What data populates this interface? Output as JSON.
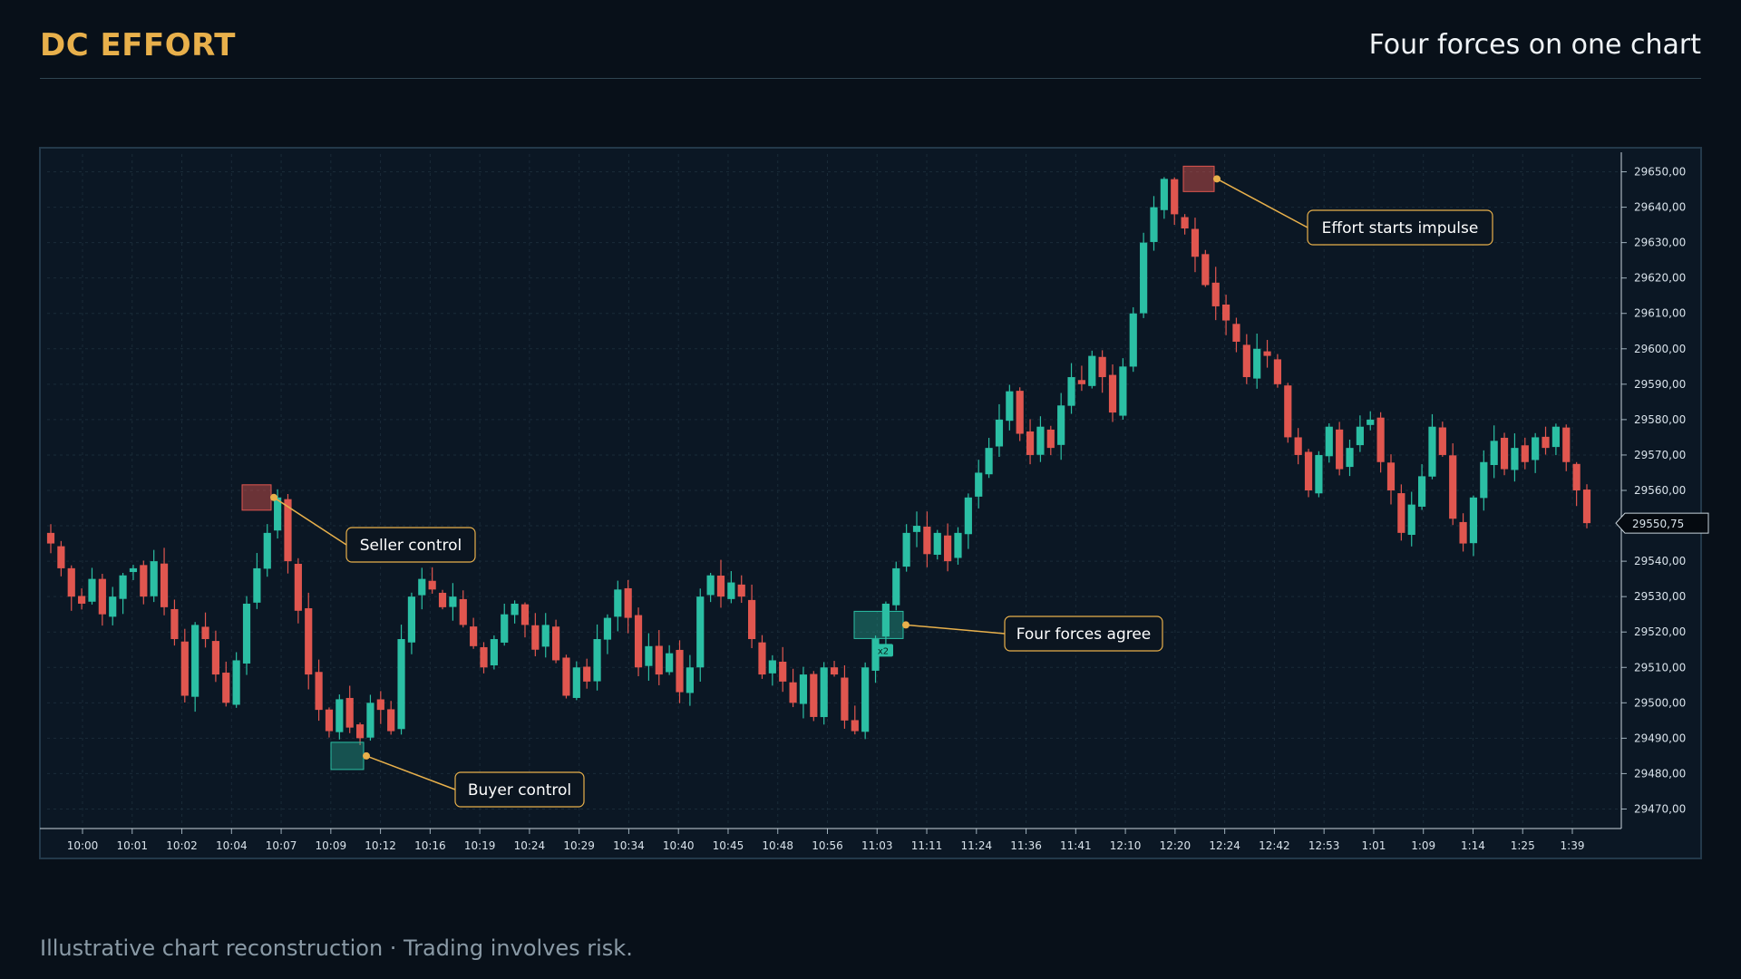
{
  "header": {
    "brand": "DC EFFORT",
    "subtitle": "Four forces on one chart"
  },
  "footer": {
    "text": "Illustrative chart reconstruction · Trading involves risk."
  },
  "colors": {
    "background": "#081019",
    "panel": "#0b1724",
    "brand": "#e8b04b",
    "up_candle": "#2bbfa4",
    "down_candle": "#e0564f",
    "callout_border": "#e8b04b",
    "grid": "#1a2b38"
  },
  "chart_data": {
    "type": "candlestick",
    "title": "",
    "ylim": [
      29465,
      29655
    ],
    "y_ticks": [
      "29650,00",
      "29640,00",
      "29630,00",
      "29620,00",
      "29610,00",
      "29600,00",
      "29590,00",
      "29580,00",
      "29570,00",
      "29560,00",
      "29550,00",
      "29540,00",
      "29530,00",
      "29520,00",
      "29510,00",
      "29500,00",
      "29490,00",
      "29480,00",
      "29470,00"
    ],
    "x_ticks": [
      "10:00",
      "10:01",
      "10:02",
      "10:04",
      "10:07",
      "10:09",
      "10:12",
      "10:16",
      "10:19",
      "10:24",
      "10:29",
      "10:34",
      "10:40",
      "10:45",
      "10:48",
      "10:56",
      "11:03",
      "11:11",
      "11:24",
      "11:36",
      "11:41",
      "12:10",
      "12:20",
      "12:24",
      "12:42",
      "12:53",
      "1:01",
      "1:09",
      "1:14",
      "1:25",
      "1:39"
    ],
    "last_price": "29550,75",
    "series_close": [
      29545,
      29538,
      29530,
      29528,
      29535,
      29525,
      29530,
      29536,
      29538,
      29530,
      29540,
      29527,
      29518,
      29502,
      29522,
      29518,
      29508,
      29500,
      29512,
      29528,
      29538,
      29548,
      29558,
      29540,
      29526,
      29508,
      29498,
      29492,
      29501,
      29493,
      29490,
      29500,
      29498,
      29492,
      29518,
      29530,
      29535,
      29532,
      29527,
      29530,
      29522,
      29516,
      29510,
      29518,
      29525,
      29528,
      29522,
      29515,
      29522,
      29512,
      29502,
      29510,
      29506,
      29518,
      29524,
      29532,
      29524,
      29510,
      29516,
      29508,
      29514,
      29503,
      29510,
      29530,
      29536,
      29530,
      29534,
      29530,
      29518,
      29508,
      29512,
      29506,
      29500,
      29508,
      29496,
      29510,
      29508,
      29495,
      29492,
      29510,
      29518,
      29528,
      29538,
      29548,
      29550,
      29542,
      29548,
      29540,
      29548,
      29558,
      29565,
      29572,
      29580,
      29588,
      29576,
      29570,
      29578,
      29572,
      29584,
      29592,
      29590,
      29598,
      29592,
      29582,
      29595,
      29610,
      29630,
      29640,
      29648,
      29638,
      29634,
      29626,
      29618,
      29612,
      29608,
      29602,
      29592,
      29600,
      29598,
      29590,
      29575,
      29570,
      29560,
      29570,
      29578,
      29566,
      29572,
      29578,
      29580,
      29568,
      29560,
      29548,
      29556,
      29564,
      29578,
      29570,
      29552,
      29545,
      29558,
      29568,
      29574,
      29566,
      29572,
      29568,
      29575,
      29572,
      29578,
      29568,
      29560,
      29550.75
    ],
    "annotations": [
      {
        "label": "Seller control",
        "price": 29558,
        "kind": "seller"
      },
      {
        "label": "Buyer control",
        "price": 29485,
        "kind": "buyer"
      },
      {
        "label": "Four forces agree",
        "price": 29522,
        "kind": "buyer",
        "badge": "x2"
      },
      {
        "label": "Effort starts impulse",
        "price": 29648,
        "kind": "seller"
      }
    ]
  }
}
